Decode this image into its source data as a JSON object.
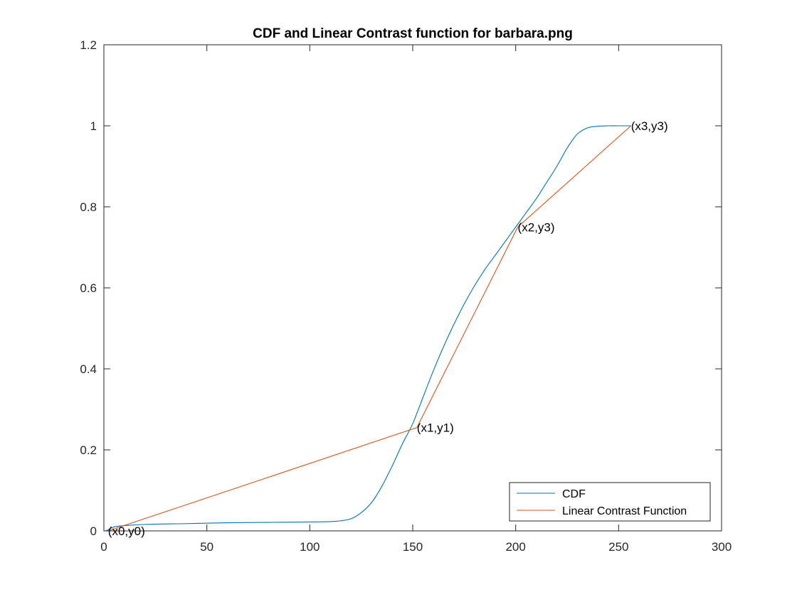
{
  "chart_data": {
    "type": "line",
    "title": "CDF and Linear Contrast function for barbara.png",
    "xlabel": "",
    "ylabel": "",
    "xlim": [
      0,
      300
    ],
    "ylim": [
      0,
      1.2
    ],
    "xticks": [
      0,
      50,
      100,
      150,
      200,
      250,
      300
    ],
    "yticks": [
      0,
      0.2,
      0.4,
      0.6,
      0.8,
      1,
      1.2
    ],
    "xtick_labels": [
      "0",
      "50",
      "100",
      "150",
      "200",
      "250",
      "300"
    ],
    "ytick_labels": [
      "0",
      "0.2",
      "0.4",
      "0.6",
      "0.8",
      "1",
      "1.2"
    ],
    "grid": false,
    "legend_position": "bottom-right",
    "series": [
      {
        "name": "CDF",
        "color": "#0072BD",
        "x": [
          1,
          5,
          10,
          20,
          40,
          60,
          80,
          100,
          110,
          115,
          120,
          125,
          130,
          135,
          140,
          145,
          150,
          155,
          160,
          165,
          170,
          175,
          180,
          185,
          190,
          195,
          200,
          205,
          210,
          215,
          220,
          225,
          230,
          235,
          240,
          245,
          250,
          256
        ],
        "y": [
          0.0,
          0.01,
          0.013,
          0.016,
          0.018,
          0.02,
          0.021,
          0.022,
          0.023,
          0.025,
          0.03,
          0.045,
          0.07,
          0.11,
          0.16,
          0.215,
          0.265,
          0.33,
          0.395,
          0.455,
          0.51,
          0.56,
          0.605,
          0.645,
          0.68,
          0.715,
          0.75,
          0.785,
          0.82,
          0.86,
          0.9,
          0.945,
          0.98,
          0.995,
          0.999,
          1.0,
          1.0,
          1.0
        ]
      },
      {
        "name": "Linear Contrast Function",
        "color": "#D95319",
        "x": [
          2,
          152,
          201,
          256
        ],
        "y": [
          0.0,
          0.255,
          0.75,
          1.0
        ]
      }
    ],
    "annotations": [
      {
        "text": "(x0,y0)",
        "x": 2,
        "y": 0.0
      },
      {
        "text": "(x1,y1)",
        "x": 152,
        "y": 0.255
      },
      {
        "text": "(x2,y3)",
        "x": 201,
        "y": 0.75
      },
      {
        "text": "(x3,y3)",
        "x": 256,
        "y": 1.0
      }
    ]
  }
}
